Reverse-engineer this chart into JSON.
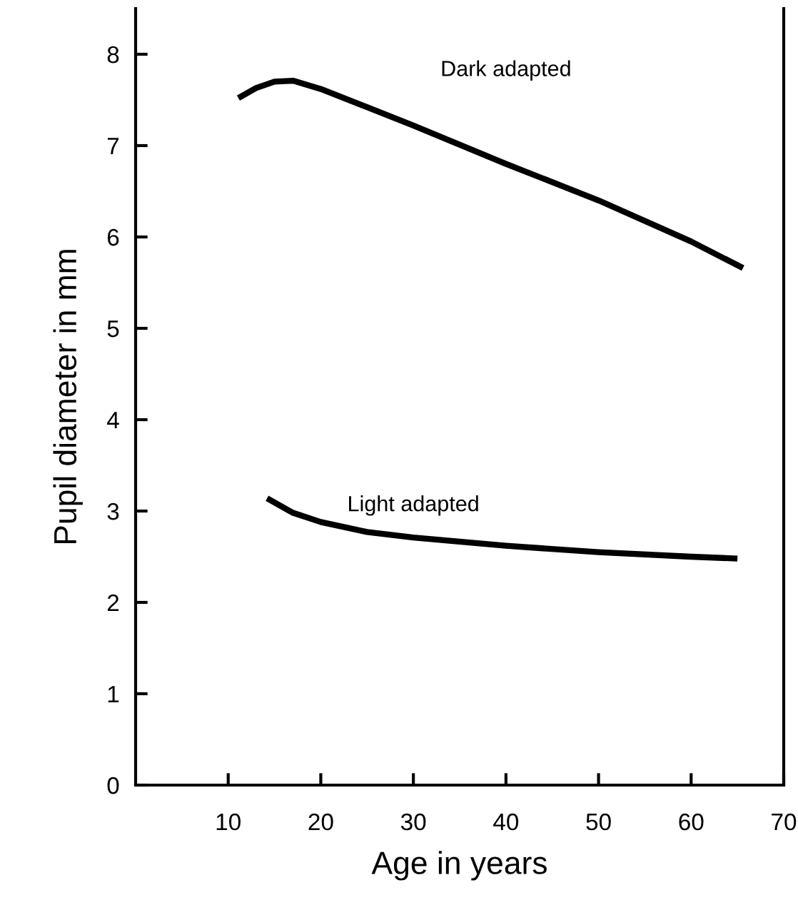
{
  "chart_data": {
    "type": "line",
    "xlabel": "Age in years",
    "ylabel": "Pupil diameter in mm",
    "xlim": [
      0,
      70
    ],
    "xticks": [
      10,
      20,
      30,
      40,
      50,
      60,
      70
    ],
    "ylim": [
      0,
      8.5
    ],
    "yticks": [
      0,
      1,
      2,
      3,
      4,
      5,
      6,
      7,
      8
    ],
    "grid": false,
    "legend": false,
    "marker": "none",
    "line_style": "solid",
    "series": [
      {
        "name": "Dark adapted",
        "color": "#000000",
        "x": [
          11.1,
          13,
          15,
          17,
          20,
          25,
          30,
          40,
          50,
          60,
          65.6
        ],
        "values": [
          7.52,
          7.63,
          7.7,
          7.71,
          7.62,
          7.42,
          7.22,
          6.8,
          6.4,
          5.95,
          5.66
        ]
      },
      {
        "name": "Light adapted",
        "color": "#000000",
        "x": [
          14.2,
          17,
          20,
          25,
          30,
          40,
          50,
          60,
          65
        ],
        "values": [
          3.14,
          2.98,
          2.88,
          2.77,
          2.71,
          2.62,
          2.55,
          2.5,
          2.48
        ]
      }
    ]
  }
}
